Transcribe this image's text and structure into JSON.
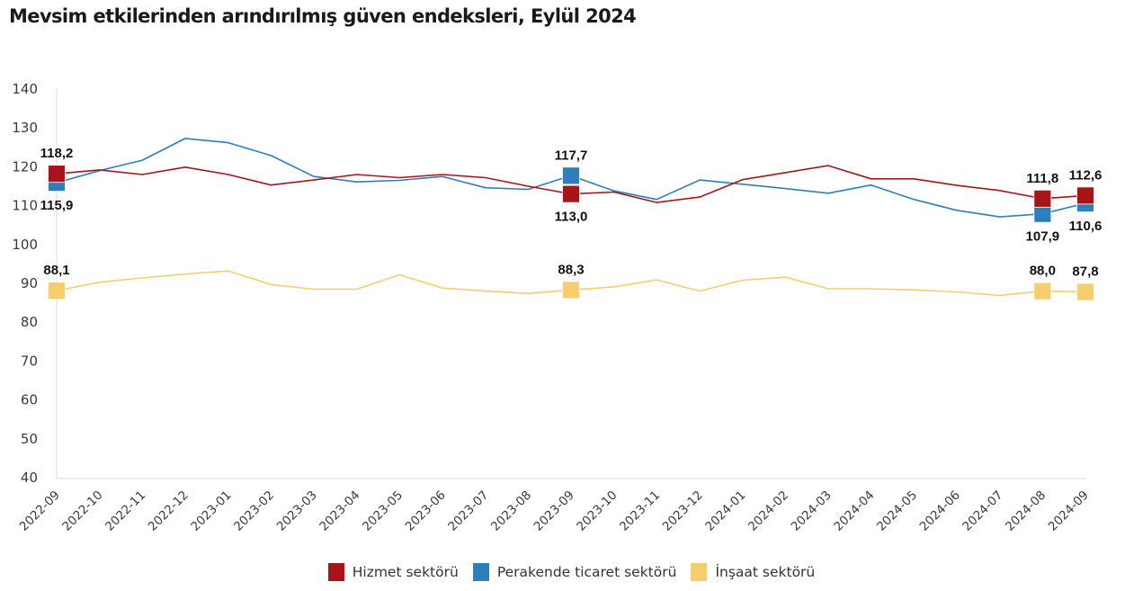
{
  "chart_data": {
    "type": "line",
    "title": "Mevsim etkilerinden arındırılmış güven endeksleri, Eylül 2024",
    "xlabel": "",
    "ylabel": "",
    "ylim": [
      40,
      140
    ],
    "yticks": [
      "140",
      "130",
      "120",
      "110",
      "100",
      "90",
      "80",
      "70",
      "60",
      "50",
      "40"
    ],
    "ytick_values": [
      140,
      130,
      120,
      110,
      100,
      90,
      80,
      70,
      60,
      50,
      40
    ],
    "grid": false,
    "legend_position": "bottom",
    "x": [
      "2022-09",
      "2022-10",
      "2022-11",
      "2022-12",
      "2023-01",
      "2023-02",
      "2023-03",
      "2023-04",
      "2023-05",
      "2023-06",
      "2023-07",
      "2023-08",
      "2023-09",
      "2023-10",
      "2023-11",
      "2023-12",
      "2024-01",
      "2024-02",
      "2024-03",
      "2024-04",
      "2024-05",
      "2024-06",
      "2024-07",
      "2024-08",
      "2024-09"
    ],
    "series": [
      {
        "name": "Hizmet sektörü",
        "color": "#a91419",
        "values": [
          118.2,
          119.2,
          118.0,
          119.9,
          118.0,
          115.3,
          116.6,
          118.0,
          117.2,
          118.0,
          117.2,
          115.0,
          113.0,
          113.5,
          110.8,
          112.2,
          116.7,
          118.5,
          120.3,
          116.9,
          116.9,
          115.2,
          113.9,
          111.8,
          112.6
        ]
      },
      {
        "name": "Perakende ticaret sektörü",
        "color": "#2e7ebc",
        "values": [
          115.9,
          119.0,
          121.7,
          127.3,
          126.2,
          122.9,
          117.5,
          116.1,
          116.5,
          117.5,
          114.6,
          114.2,
          117.7,
          113.8,
          111.6,
          116.6,
          115.5,
          114.4,
          113.2,
          115.3,
          111.6,
          108.8,
          107.1,
          107.9,
          110.6
        ]
      },
      {
        "name": "İnşaat sektörü",
        "color": "#f7ce6c",
        "values": [
          88.1,
          90.3,
          91.4,
          92.4,
          93.2,
          89.7,
          88.5,
          88.5,
          92.2,
          88.8,
          88.0,
          87.4,
          88.3,
          89.1,
          90.9,
          88.0,
          90.8,
          91.6,
          88.6,
          88.6,
          88.3,
          87.8,
          86.9,
          88.0,
          87.8
        ]
      }
    ],
    "annotations": [
      {
        "series": 0,
        "x": "2022-09",
        "text": "118,2",
        "position": "above"
      },
      {
        "series": 1,
        "x": "2022-09",
        "text": "115,9",
        "position": "below"
      },
      {
        "series": 2,
        "x": "2022-09",
        "text": "88,1",
        "position": "above"
      },
      {
        "series": 1,
        "x": "2023-09",
        "text": "117,7",
        "position": "above"
      },
      {
        "series": 0,
        "x": "2023-09",
        "text": "113,0",
        "position": "below"
      },
      {
        "series": 2,
        "x": "2023-09",
        "text": "88,3",
        "position": "above"
      },
      {
        "series": 0,
        "x": "2024-08",
        "text": "111,8",
        "position": "above"
      },
      {
        "series": 1,
        "x": "2024-08",
        "text": "107,9",
        "position": "below"
      },
      {
        "series": 2,
        "x": "2024-08",
        "text": "88,0",
        "position": "above"
      },
      {
        "series": 0,
        "x": "2024-09",
        "text": "112,6",
        "position": "above"
      },
      {
        "series": 1,
        "x": "2024-09",
        "text": "110,6",
        "position": "below"
      },
      {
        "series": 2,
        "x": "2024-09",
        "text": "87,8",
        "position": "above"
      }
    ],
    "marker_order": [
      [
        2,
        1,
        0
      ],
      [
        2,
        0,
        1
      ],
      [
        2,
        1,
        0
      ],
      [
        2,
        1,
        0
      ]
    ]
  }
}
